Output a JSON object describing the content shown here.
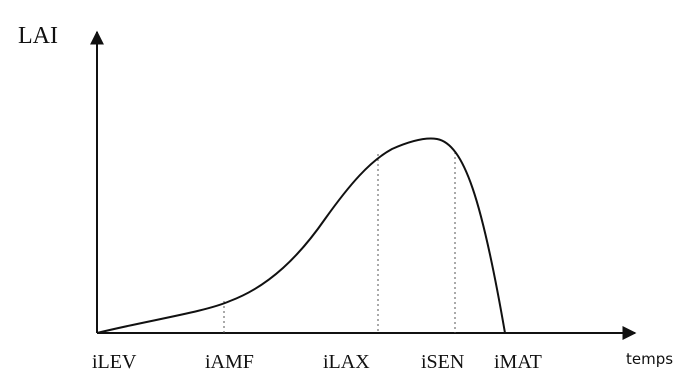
{
  "chart_data": {
    "type": "line",
    "ylabel": "LAI",
    "xlabel": "temps",
    "stages": [
      "iLEV",
      "iAMF",
      "iLAX",
      "iSEN",
      "iMAT"
    ],
    "curve_style": "schematic",
    "colors": {
      "curve": "#111111",
      "axis": "#111111",
      "guide": "#555555"
    }
  }
}
